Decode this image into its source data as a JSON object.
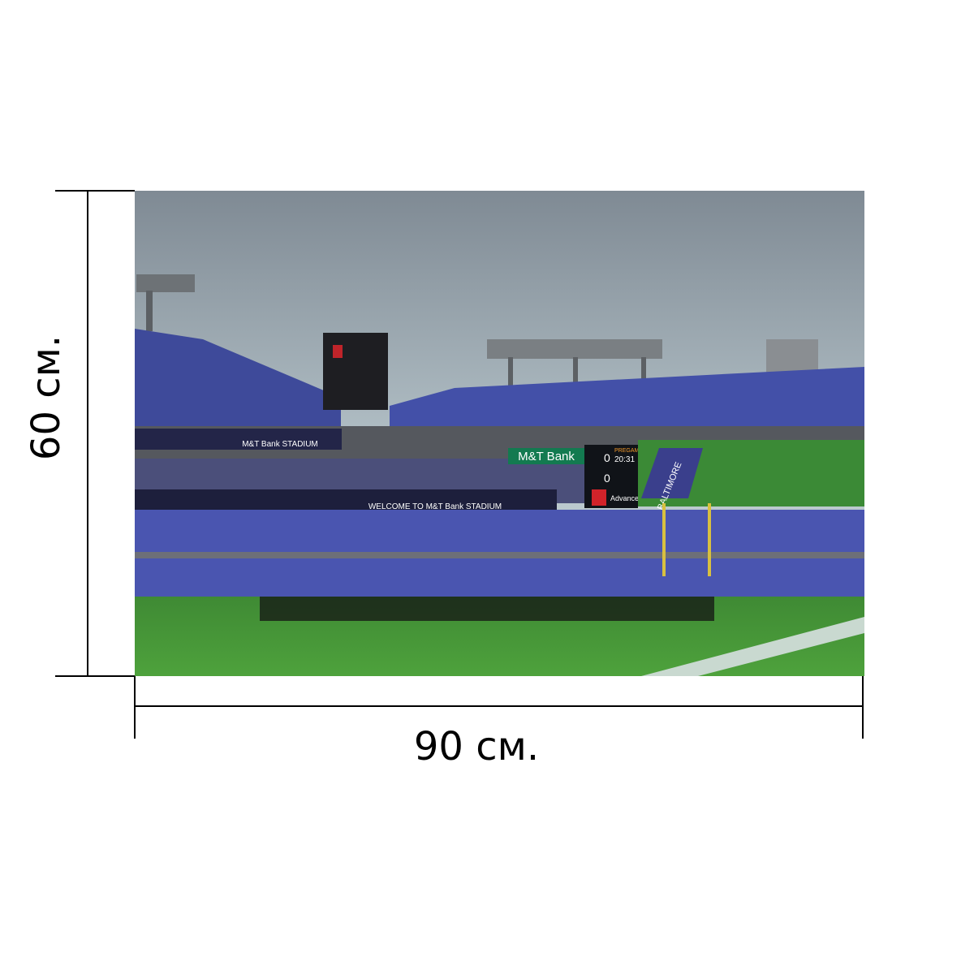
{
  "dimensions": {
    "height_label": "60 см.",
    "width_label": "90 см."
  },
  "photo": {
    "signs": {
      "sponsor": "M&T Bank",
      "banner": "WELCOME TO M&T Bank STADIUM",
      "left_banner": "M&T Bank STADIUM",
      "status": "PREGAME",
      "clock": "20:31",
      "home_score": "0",
      "away_score": "0",
      "ad": "Advance",
      "end_zone": "BALTIMORE"
    }
  }
}
